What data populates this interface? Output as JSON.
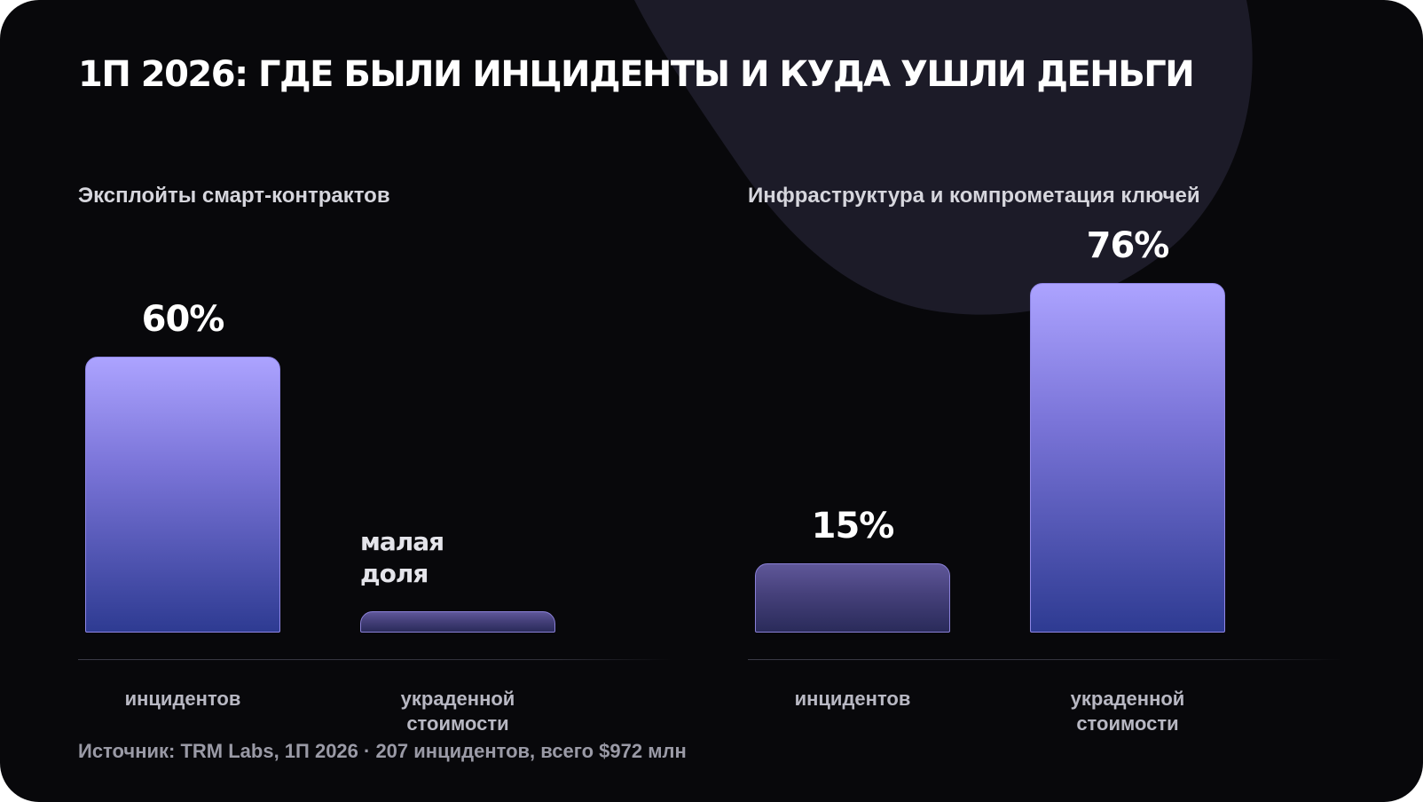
{
  "title": "1П 2026: ГДЕ БЫЛИ ИНЦИДЕНТЫ И КУДА УШЛИ ДЕНЬГИ",
  "source": "Источник: TRM Labs, 1П 2026 · 207 инцидентов, всего $972 млн",
  "colors": {
    "background": "#08080b",
    "blob": "#1c1b28",
    "bar_top": "#aca3ff",
    "bar_bottom": "#2e3b92",
    "bar_border": "#8f86e6"
  },
  "chart_data": [
    {
      "type": "bar",
      "title": "Эксплойты смарт-контрактов",
      "categories": [
        "инцидентов",
        "украденной стоимости"
      ],
      "values": [
        60,
        2
      ],
      "value_labels": [
        "60%",
        "малая доля"
      ],
      "unit": "%",
      "ylim": [
        0,
        100
      ],
      "grid": false
    },
    {
      "type": "bar",
      "title": "Инфраструктура и компрометация ключей",
      "categories": [
        "инцидентов",
        "украденной стоимости"
      ],
      "values": [
        15,
        76
      ],
      "value_labels": [
        "15%",
        "76%"
      ],
      "unit": "%",
      "ylim": [
        0,
        100
      ],
      "grid": false
    }
  ]
}
